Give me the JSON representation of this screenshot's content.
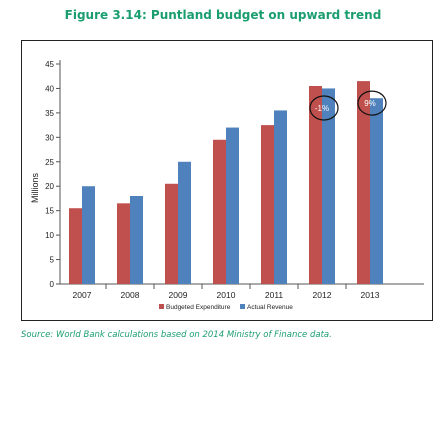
{
  "figure_title": "Figure 3.14: Puntland budget on upward trend",
  "source_note": "Source: World Bank calculations based on 2014 Ministry of Finance data.",
  "colors": {
    "expenditure": "#c0504d",
    "revenue": "#4f81bd",
    "title": "#1b9e6f"
  },
  "chart_data": {
    "type": "bar",
    "categories": [
      "2007",
      "2008",
      "2009",
      "2010",
      "2011",
      "2012",
      "2013"
    ],
    "series": [
      {
        "name": "Budgeted Expenditure",
        "values": [
          15.5,
          16.5,
          20.5,
          29.5,
          32.5,
          40.5,
          41.5
        ]
      },
      {
        "name": "Actual Revenue",
        "values": [
          20,
          18,
          25,
          32,
          35.5,
          40,
          38
        ]
      }
    ],
    "ylabel": "Millions",
    "yticks": [
      0,
      5,
      10,
      15,
      20,
      25,
      30,
      35,
      40,
      45
    ],
    "ylim": [
      0,
      45
    ],
    "annotations": [
      {
        "text": "-1%",
        "category": "2012"
      },
      {
        "text": "9%",
        "category": "2013"
      }
    ],
    "legend_position": "bottom",
    "grid": false
  }
}
